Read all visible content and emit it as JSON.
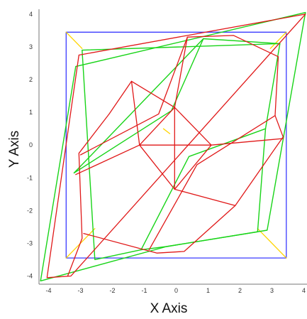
{
  "chart_data": {
    "type": "line",
    "title": "",
    "xlabel": "X Axis",
    "ylabel": "Y Axis",
    "xlim": [
      -4.3,
      4.1
    ],
    "ylim": [
      -4.25,
      4.15
    ],
    "x_ticks": [
      "-4",
      "-3",
      "-2",
      "-1",
      "0",
      "1",
      "2",
      "3",
      "4"
    ],
    "y_ticks": [
      "4",
      "3",
      "2",
      "1",
      "0",
      "-1",
      "-2",
      "-3",
      "-4"
    ],
    "grid": false,
    "legend": "none",
    "colors": {
      "square": "#3b3bff",
      "corner": "#ffd400",
      "green": "#18d418",
      "red": "#e01818"
    },
    "series": [
      {
        "style": "square",
        "points": [
          [
            -3.45,
            3.45
          ],
          [
            3.45,
            3.45
          ],
          [
            3.45,
            -3.45
          ],
          [
            -3.45,
            -3.45
          ],
          [
            -3.45,
            3.45
          ]
        ]
      },
      {
        "style": "corner",
        "segments": [
          [
            [
              -3.45,
              3.45
            ],
            [
              -2.95,
              2.95
            ]
          ],
          [
            [
              3.45,
              3.45
            ],
            [
              2.95,
              2.95
            ]
          ],
          [
            [
              3.45,
              -3.45
            ],
            [
              2.55,
              -2.55
            ]
          ],
          [
            [
              -3.45,
              -3.45
            ],
            [
              -2.55,
              -2.55
            ]
          ],
          [
            [
              -0.2,
              0.35
            ],
            [
              -0.4,
              0.5
            ]
          ]
        ]
      },
      {
        "style": "green",
        "points": [
          [
            -4.25,
            -4.15
          ],
          [
            -0.3,
            -3.1
          ],
          [
            2.85,
            -2.6
          ],
          [
            4.05,
            4.05
          ],
          [
            -3.15,
            2.4
          ],
          [
            -4.25,
            -4.15
          ]
        ]
      },
      {
        "style": "green",
        "points": [
          [
            -2.95,
            2.9
          ],
          [
            3.25,
            3.1
          ],
          [
            2.8,
            0.5
          ],
          [
            2.55,
            -2.65
          ],
          [
            -0.3,
            -3.1
          ],
          [
            -1.1,
            -3.2
          ],
          [
            -2.55,
            -3.5
          ],
          [
            -2.95,
            2.9
          ]
        ]
      },
      {
        "style": "green",
        "points": [
          [
            3.25,
            3.1
          ],
          [
            0.85,
            3.25
          ],
          [
            -3.2,
            -0.85
          ]
        ]
      },
      {
        "style": "green",
        "points": [
          [
            -3.2,
            -0.85
          ],
          [
            -0.15,
            1.05
          ],
          [
            0.85,
            3.25
          ]
        ]
      },
      {
        "style": "green",
        "points": [
          [
            2.8,
            0.5
          ],
          [
            0.4,
            -0.35
          ],
          [
            -1.1,
            -3.2
          ]
        ]
      },
      {
        "style": "red",
        "points": [
          [
            4.05,
            4.0
          ],
          [
            -3.05,
            2.75
          ],
          [
            -4.05,
            -4.05
          ],
          [
            -3.3,
            -4.0
          ],
          [
            4.05,
            4.0
          ]
        ]
      },
      {
        "style": "red",
        "points": [
          [
            -3.4,
            -4.0
          ],
          [
            -2.95,
            -2.85
          ],
          [
            -3.05,
            -0.25
          ],
          [
            -2.1,
            0.95
          ],
          [
            -1.4,
            1.95
          ],
          [
            -0.05,
            1.15
          ],
          [
            0.35,
            3.3
          ],
          [
            1.8,
            3.35
          ],
          [
            3.2,
            2.7
          ],
          [
            3.1,
            0.9
          ],
          [
            3.35,
            0.25
          ],
          [
            1.85,
            -1.85
          ],
          [
            0.25,
            -3.25
          ],
          [
            -0.6,
            -3.3
          ],
          [
            -2.9,
            -2.7
          ]
        ]
      },
      {
        "style": "red",
        "points": [
          [
            0.35,
            3.3
          ],
          [
            -0.55,
            0.95
          ],
          [
            -3.0,
            -0.3
          ]
        ]
      },
      {
        "style": "red",
        "points": [
          [
            3.1,
            0.9
          ],
          [
            0.65,
            -0.6
          ],
          [
            -0.85,
            -3.2
          ]
        ]
      },
      {
        "style": "red",
        "points": [
          [
            -1.4,
            1.95
          ],
          [
            -1.15,
            0.0
          ],
          [
            -0.05,
            -1.35
          ],
          [
            1.1,
            0.0
          ],
          [
            -0.05,
            1.15
          ],
          [
            -1.15,
            0.0
          ]
        ]
      },
      {
        "style": "red",
        "points": [
          [
            -1.15,
            0.0
          ],
          [
            -3.15,
            -0.9
          ]
        ]
      },
      {
        "style": "red",
        "points": [
          [
            1.1,
            0.0
          ],
          [
            3.35,
            0.2
          ]
        ]
      },
      {
        "style": "red",
        "points": [
          [
            -0.05,
            1.15
          ],
          [
            -0.05,
            -1.35
          ]
        ]
      },
      {
        "style": "red",
        "points": [
          [
            -1.15,
            0.0
          ],
          [
            1.1,
            0.0
          ]
        ]
      },
      {
        "style": "red",
        "points": [
          [
            -0.05,
            -1.35
          ],
          [
            1.85,
            -1.85
          ]
        ]
      }
    ]
  }
}
